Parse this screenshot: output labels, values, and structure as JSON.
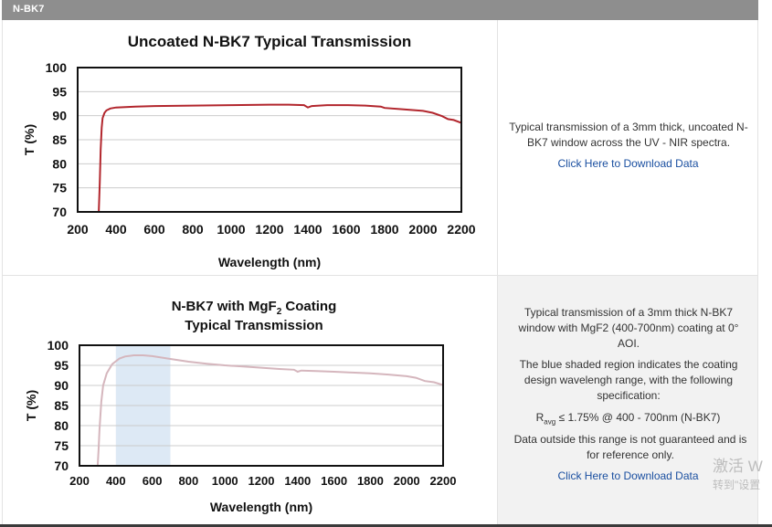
{
  "header": {
    "title": "N-BK7"
  },
  "section1": {
    "description": "Typical transmission of a 3mm thick, uncoated N-BK7 window across the UV - NIR spectra.",
    "link": "Click Here to Download Data"
  },
  "section2": {
    "description": "Typical transmission of a 3mm thick N-BK7 window with MgF2 (400-700nm) coating at 0° AOI.",
    "shade_note": "The blue shaded region indicates the coating design wavelengh range, with the following specification:",
    "spec_r": "R",
    "spec_sub": "avg",
    "spec_rest": " ≤ 1.75% @ 400 - 700nm (N-BK7)",
    "disclaimer": "Data outside this range is not guaranteed and is for reference only.",
    "link": "Click Here to Download Data"
  },
  "watermark": {
    "line1": "激活 W",
    "line2": "转到\"设置"
  },
  "chart_data": [
    {
      "type": "line",
      "title": "Uncoated N-BK7 Typical Transmission",
      "xlabel": "Wavelength (nm)",
      "ylabel": "T (%)",
      "xlim": [
        200,
        2200
      ],
      "ylim": [
        70,
        100
      ],
      "xticks": [
        200,
        400,
        600,
        800,
        1000,
        1200,
        1400,
        1600,
        1800,
        2000,
        2200
      ],
      "yticks": [
        70,
        75,
        80,
        85,
        90,
        95,
        100
      ],
      "grid": true,
      "color": "#b2262d",
      "series": [
        {
          "name": "Uncoated N-BK7",
          "x": [
            310,
            315,
            320,
            325,
            330,
            340,
            350,
            370,
            400,
            500,
            600,
            800,
            1000,
            1200,
            1300,
            1380,
            1400,
            1420,
            1500,
            1600,
            1700,
            1780,
            1800,
            1900,
            2000,
            2050,
            2100,
            2130,
            2160,
            2200
          ],
          "y": [
            70,
            76,
            83,
            87.5,
            89.5,
            90.6,
            91.1,
            91.5,
            91.7,
            91.9,
            92.0,
            92.1,
            92.2,
            92.3,
            92.3,
            92.2,
            91.7,
            92.0,
            92.2,
            92.2,
            92.1,
            91.9,
            91.6,
            91.3,
            91.0,
            90.6,
            89.9,
            89.3,
            89.1,
            88.5
          ]
        }
      ]
    },
    {
      "type": "line",
      "title": "N-BK7 with MgF2 Coating Typical Transmission",
      "title_line1": "N-BK7 with MgF",
      "title_sub": "2",
      "title_line1_rest": " Coating",
      "title_line2": "Typical Transmission",
      "xlabel": "Wavelength (nm)",
      "ylabel": "T (%)",
      "xlim": [
        200,
        2200
      ],
      "ylim": [
        70,
        100
      ],
      "xticks": [
        200,
        400,
        600,
        800,
        1000,
        1200,
        1400,
        1600,
        1800,
        2000,
        2200
      ],
      "yticks": [
        70,
        75,
        80,
        85,
        90,
        95,
        100
      ],
      "grid": true,
      "color": "#d5b6bd",
      "shade": {
        "from": 400,
        "to": 700,
        "color": "#dde9f5"
      },
      "series": [
        {
          "name": "N-BK7 with MgF2",
          "x": [
            300,
            305,
            310,
            320,
            330,
            350,
            380,
            420,
            450,
            500,
            550,
            600,
            700,
            800,
            900,
            1000,
            1100,
            1200,
            1300,
            1380,
            1400,
            1420,
            1500,
            1600,
            1700,
            1800,
            1900,
            2000,
            2050,
            2100,
            2150,
            2200
          ],
          "y": [
            70,
            74,
            79,
            86,
            90,
            93,
            95.3,
            96.7,
            97.2,
            97.5,
            97.5,
            97.3,
            96.6,
            95.9,
            95.4,
            95.0,
            94.7,
            94.4,
            94.1,
            93.9,
            93.4,
            93.7,
            93.6,
            93.4,
            93.2,
            93.0,
            92.7,
            92.3,
            91.9,
            91.1,
            90.8,
            90.1
          ]
        }
      ]
    }
  ]
}
